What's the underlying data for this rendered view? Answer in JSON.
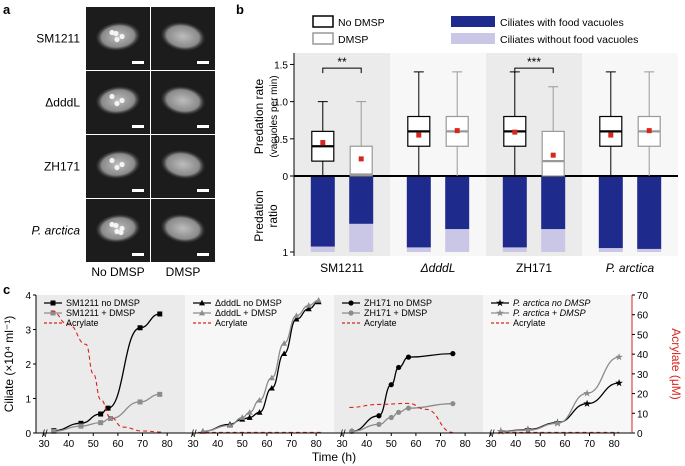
{
  "panel_labels": {
    "a": "a",
    "b": "b",
    "c": "c"
  },
  "panel_a": {
    "strains": [
      "SM1211",
      "ΔdddL",
      "ZH171",
      "P. arctica"
    ],
    "columns": [
      "No DMSP",
      "DMSP"
    ]
  },
  "panel_b": {
    "legend": {
      "no_dmsp": "No DMSP",
      "dmsp": "DMSP",
      "with_vacuoles": "Ciliates with food vacuoles",
      "without_vacuoles": "Ciliates without food vacuoles"
    },
    "ylabel_rate": "Predation rate",
    "ylabel_rate_units": "(vacuoles per min)",
    "ylabel_ratio": "Predation",
    "ylabel_ratio2": "ratio",
    "rate_ticks": [
      "0",
      "0.5",
      "1.0",
      "1.5"
    ],
    "ratio_tick": "1",
    "strains": [
      "SM1211",
      "ΔdddL",
      "ZH171",
      "P. arctica"
    ],
    "significance": [
      "**",
      "",
      "***",
      ""
    ],
    "colors": {
      "with": "#1e2a8c",
      "without": "#c9c6e6",
      "mean": "#d7261e",
      "shade": "#ebebeb"
    },
    "boxplots": [
      {
        "strain": "SM1211",
        "condition": "No DMSP",
        "min": 0,
        "q1": 0.2,
        "median": 0.4,
        "q3": 0.6,
        "max": 1.0,
        "mean": 0.45
      },
      {
        "strain": "SM1211",
        "condition": "DMSP",
        "min": 0,
        "q1": 0.0,
        "median": 0.02,
        "q3": 0.4,
        "max": 1.0,
        "mean": 0.23
      },
      {
        "strain": "ΔdddL",
        "condition": "No DMSP",
        "min": 0,
        "q1": 0.4,
        "median": 0.6,
        "q3": 0.8,
        "max": 1.4,
        "mean": 0.55
      },
      {
        "strain": "ΔdddL",
        "condition": "DMSP",
        "min": 0,
        "q1": 0.4,
        "median": 0.6,
        "q3": 0.8,
        "max": 1.4,
        "mean": 0.61
      },
      {
        "strain": "ZH171",
        "condition": "No DMSP",
        "min": 0,
        "q1": 0.4,
        "median": 0.6,
        "q3": 0.8,
        "max": 1.4,
        "mean": 0.59
      },
      {
        "strain": "ZH171",
        "condition": "DMSP",
        "min": 0,
        "q1": 0.0,
        "median": 0.2,
        "q3": 0.6,
        "max": 1.2,
        "mean": 0.28
      },
      {
        "strain": "P. arctica",
        "condition": "No DMSP",
        "min": 0,
        "q1": 0.4,
        "median": 0.6,
        "q3": 0.8,
        "max": 1.4,
        "mean": 0.55
      },
      {
        "strain": "P. arctica",
        "condition": "DMSP",
        "min": 0,
        "q1": 0.4,
        "median": 0.6,
        "q3": 0.8,
        "max": 1.4,
        "mean": 0.61
      }
    ],
    "ratio_with_food": [
      0.93,
      0.63,
      0.94,
      0.7,
      0.94,
      0.7,
      0.95,
      0.96
    ]
  },
  "chart_data": {
    "type": "line",
    "xlabel": "Time (h)",
    "ylabel": "Ciliate (×10⁴ ml⁻¹)",
    "y2label": "Acrylate (μM)",
    "xlim": [
      30,
      80
    ],
    "ylim": [
      0,
      4
    ],
    "y2lim": [
      0,
      70
    ],
    "xticks": [
      "30",
      "40",
      "50",
      "60",
      "70",
      "80"
    ],
    "yticks": [
      "0",
      "1",
      "2",
      "3",
      "4"
    ],
    "y2ticks": [
      "0",
      "10",
      "20",
      "30",
      "40",
      "50",
      "60",
      "70"
    ],
    "subplots": [
      {
        "series": [
          {
            "name": "SM1211 no DMSP",
            "marker": "square",
            "color": "#000000",
            "x": [
              34,
              45,
              53,
              56,
              69,
              77
            ],
            "y": [
              0.07,
              0.28,
              0.55,
              0.72,
              3.05,
              3.45
            ]
          },
          {
            "name": "SM1211 + DMSP",
            "marker": "square",
            "color": "#8c8c8c",
            "x": [
              34,
              45,
              53,
              57,
              69,
              77
            ],
            "y": [
              0.05,
              0.2,
              0.3,
              0.42,
              0.9,
              1.12
            ]
          },
          {
            "name": "Acrylate",
            "marker": "none",
            "color": "#d7261e",
            "dashed": true,
            "x": [
              33,
              40,
              47,
              50,
              53,
              57,
              62,
              70,
              78
            ],
            "y2": [
              62,
              55,
              45,
              30,
              17,
              8,
              3,
              1,
              0.5
            ]
          }
        ]
      },
      {
        "series": [
          {
            "name": "ΔdddL no DMSP",
            "marker": "triangle",
            "color": "#000000",
            "x": [
              34,
              45,
              50,
              53,
              57,
              62,
              67,
              72,
              77,
              81
            ],
            "y": [
              0.05,
              0.25,
              0.4,
              0.45,
              0.6,
              1.3,
              2.3,
              3.3,
              3.6,
              3.8
            ]
          },
          {
            "name": "ΔdddL + DMSP",
            "marker": "triangle",
            "color": "#8c8c8c",
            "x": [
              34,
              45,
              50,
              53,
              57,
              62,
              67,
              72,
              77,
              81
            ],
            "y": [
              0.05,
              0.22,
              0.45,
              0.6,
              0.95,
              1.6,
              2.6,
              3.4,
              3.7,
              3.85
            ]
          },
          {
            "name": "Acrylate",
            "marker": "none",
            "color": "#d7261e",
            "dashed": true,
            "x": [
              32,
              50,
              60,
              70,
              82
            ],
            "y2": [
              0.3,
              0.3,
              0.3,
              0.3,
              0.3
            ]
          }
        ]
      },
      {
        "series": [
          {
            "name": "ZH171 no DMSP",
            "marker": "circle",
            "color": "#000000",
            "x": [
              34,
              45,
              50,
              53,
              57,
              75
            ],
            "y": [
              0.05,
              0.5,
              1.4,
              1.9,
              2.2,
              2.3
            ]
          },
          {
            "name": "ZH171 + DMSP",
            "marker": "circle",
            "color": "#8c8c8c",
            "x": [
              34,
              45,
              50,
              53,
              57,
              75
            ],
            "y": [
              0.05,
              0.25,
              0.45,
              0.6,
              0.72,
              0.85
            ]
          },
          {
            "name": "Acrylate",
            "marker": "none",
            "color": "#d7261e",
            "dashed": true,
            "x": [
              33,
              45,
              57,
              64,
              75
            ],
            "y2": [
              13,
              14.5,
              15,
              12,
              0.3
            ]
          }
        ]
      },
      {
        "series": [
          {
            "name": "P. arctica no DMSP",
            "marker": "star",
            "color": "#000000",
            "x": [
              34,
              45,
              57,
              69,
              82
            ],
            "y": [
              0.05,
              0.1,
              0.3,
              0.85,
              1.45
            ]
          },
          {
            "name": "P. arctica + DMSP",
            "marker": "star",
            "color": "#8c8c8c",
            "x": [
              34,
              45,
              57,
              69,
              82
            ],
            "y": [
              0.05,
              0.08,
              0.28,
              1.15,
              2.2
            ]
          },
          {
            "name": "Acrylate",
            "marker": "none",
            "color": "#d7261e",
            "dashed": true,
            "x": [
              33,
              45,
              57,
              69,
              82
            ],
            "y2": [
              0.3,
              0.3,
              0.3,
              0.3,
              0.3
            ]
          }
        ]
      }
    ]
  }
}
